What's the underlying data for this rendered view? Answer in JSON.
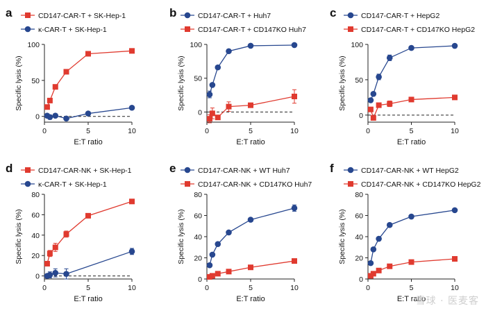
{
  "figure": {
    "watermark": "雪球 · 医麦客"
  },
  "panels": [
    {
      "letter": "a",
      "ylabel": "Specific lysis (%)",
      "xlabel": "E:T ratio",
      "ylim": [
        -8,
        100
      ],
      "yticks": [
        0,
        50,
        100
      ],
      "xlim": [
        0,
        10
      ],
      "xticks": [
        0,
        5,
        10
      ],
      "series": [
        {
          "name": "CD147-CAR-T + SK-Hep-1",
          "color": "#e03a2f",
          "marker": "square",
          "x": [
            0.3125,
            0.625,
            1.25,
            2.5,
            5,
            10
          ],
          "y": [
            13,
            22,
            41,
            62,
            87,
            91
          ],
          "err": [
            2,
            2,
            2,
            2,
            2,
            2
          ]
        },
        {
          "name": "κ-CAR-T + SK-Hep-1",
          "color": "#27478f",
          "marker": "circle",
          "x": [
            0.3125,
            0.625,
            1.25,
            2.5,
            5,
            10
          ],
          "y": [
            1,
            -1,
            1,
            -3,
            4,
            12
          ],
          "err": [
            1,
            3,
            1,
            1,
            1,
            1
          ]
        }
      ]
    },
    {
      "letter": "b",
      "ylabel": "Specific lysis (%)",
      "xlabel": "E:T ratio",
      "ylim": [
        -15,
        100
      ],
      "yticks": [
        0,
        50,
        100
      ],
      "xlim": [
        0,
        10
      ],
      "xticks": [
        0,
        5,
        10
      ],
      "series": [
        {
          "name": "CD147-CAR-T + Huh7",
          "color": "#27478f",
          "marker": "circle",
          "x": [
            0.3125,
            0.625,
            1.25,
            2.5,
            5,
            10
          ],
          "y": [
            26,
            40,
            66,
            90,
            98,
            99
          ],
          "err": [
            5,
            2,
            2,
            1,
            1,
            1
          ]
        },
        {
          "name": "CD147-CAR-T + CD147KO Huh7",
          "color": "#e03a2f",
          "marker": "square",
          "x": [
            0.3125,
            0.625,
            1.25,
            2.5,
            5,
            10
          ],
          "y": [
            -10,
            -2,
            -8,
            8,
            10,
            23
          ],
          "err": [
            6,
            8,
            2,
            7,
            2,
            10
          ]
        }
      ]
    },
    {
      "letter": "c",
      "ylabel": "Specific lysis (%)",
      "xlabel": "E:T ratio",
      "ylim": [
        -10,
        100
      ],
      "yticks": [
        0,
        50,
        100
      ],
      "xlim": [
        0,
        10
      ],
      "xticks": [
        0,
        5,
        10
      ],
      "series": [
        {
          "name": "CD147-CAR-T + HepG2",
          "color": "#27478f",
          "marker": "circle",
          "x": [
            0.3125,
            0.625,
            1.25,
            2.5,
            5,
            10
          ],
          "y": [
            21,
            30,
            54,
            81,
            95,
            98
          ],
          "err": [
            2,
            2,
            4,
            4,
            1,
            1
          ]
        },
        {
          "name": "CD147-CAR-T + CD147KO HepG2",
          "color": "#e03a2f",
          "marker": "square",
          "x": [
            0.3125,
            0.625,
            1.25,
            2.5,
            5,
            10
          ],
          "y": [
            8,
            -4,
            14,
            16,
            22,
            25
          ],
          "err": [
            3,
            2,
            3,
            4,
            2,
            3
          ]
        }
      ]
    },
    {
      "letter": "d",
      "ylabel": "Specific lysis (%)",
      "xlabel": "E:T ratio",
      "ylim": [
        -3,
        80
      ],
      "yticks": [
        0,
        20,
        40,
        60,
        80
      ],
      "xlim": [
        0,
        10
      ],
      "xticks": [
        0,
        5,
        10
      ],
      "series": [
        {
          "name": "CD147-CAR-NK + SK-Hep-1",
          "color": "#e03a2f",
          "marker": "square",
          "x": [
            0.3125,
            0.625,
            1.25,
            2.5,
            5,
            10
          ],
          "y": [
            12,
            22,
            28,
            41,
            59,
            73
          ],
          "err": [
            2,
            3,
            4,
            3,
            1,
            2
          ]
        },
        {
          "name": "κ-CAR-T + SK-Hep-1",
          "color": "#27478f",
          "marker": "circle",
          "x": [
            0.3125,
            0.625,
            1.25,
            2.5,
            5,
            10
          ],
          "y": [
            0,
            1,
            3,
            2,
            null,
            24
          ],
          "err": [
            1,
            3,
            4,
            5,
            null,
            3
          ]
        }
      ]
    },
    {
      "letter": "e",
      "ylabel": "Specific lysis (%)",
      "xlabel": "E:T ratio",
      "ylim": [
        0,
        80
      ],
      "yticks": [
        0,
        20,
        40,
        60,
        80
      ],
      "xlim": [
        0,
        10
      ],
      "xticks": [
        0,
        5,
        10
      ],
      "series": [
        {
          "name": "CD147-CAR-NK + WT Huh7",
          "color": "#27478f",
          "marker": "circle",
          "x": [
            0.3125,
            0.625,
            1.25,
            2.5,
            5,
            10
          ],
          "y": [
            13,
            23,
            33,
            44,
            56,
            67
          ],
          "err": [
            1,
            1,
            1,
            1,
            1,
            3
          ]
        },
        {
          "name": "CD147-CAR-NK + CD147KO Huh7",
          "color": "#e03a2f",
          "marker": "square",
          "x": [
            0.3125,
            0.625,
            1.25,
            2.5,
            5,
            10
          ],
          "y": [
            2,
            3,
            5,
            7,
            11,
            17
          ],
          "err": [
            1,
            1,
            1,
            1,
            1,
            1
          ]
        }
      ]
    },
    {
      "letter": "f",
      "ylabel": "Specific lysis (%)",
      "xlabel": "E:T ratio",
      "ylim": [
        0,
        80
      ],
      "yticks": [
        0,
        20,
        40,
        60,
        80
      ],
      "xlim": [
        0,
        10
      ],
      "xticks": [
        0,
        5,
        10
      ],
      "series": [
        {
          "name": "CD147-CAR-NK + WT HepG2",
          "color": "#27478f",
          "marker": "circle",
          "x": [
            0.3125,
            0.625,
            1.25,
            2.5,
            5,
            10
          ],
          "y": [
            15,
            28,
            38,
            51,
            59,
            65
          ],
          "err": [
            1,
            1,
            1,
            1,
            1,
            1
          ]
        },
        {
          "name": "CD147-CAR-NK + CD147KO HepG2",
          "color": "#e03a2f",
          "marker": "square",
          "x": [
            0.3125,
            0.625,
            1.25,
            2.5,
            5,
            10
          ],
          "y": [
            3,
            5,
            8,
            12,
            16,
            19
          ],
          "err": [
            1,
            1,
            1,
            1,
            1,
            1
          ]
        }
      ]
    }
  ],
  "chart_data": [
    {
      "type": "line",
      "title": "a",
      "xlabel": "E:T ratio",
      "ylabel": "Specific lysis (%)",
      "ylim": [
        -8,
        100
      ],
      "x": [
        0.3125,
        0.625,
        1.25,
        2.5,
        5,
        10
      ],
      "series": [
        {
          "name": "CD147-CAR-T + SK-Hep-1",
          "values": [
            13,
            22,
            41,
            62,
            87,
            91
          ]
        },
        {
          "name": "κ-CAR-T + SK-Hep-1",
          "values": [
            1,
            -1,
            1,
            -3,
            4,
            12
          ]
        }
      ]
    },
    {
      "type": "line",
      "title": "b",
      "xlabel": "E:T ratio",
      "ylabel": "Specific lysis (%)",
      "ylim": [
        -15,
        100
      ],
      "x": [
        0.3125,
        0.625,
        1.25,
        2.5,
        5,
        10
      ],
      "series": [
        {
          "name": "CD147-CAR-T + Huh7",
          "values": [
            26,
            40,
            66,
            90,
            98,
            99
          ]
        },
        {
          "name": "CD147-CAR-T + CD147KO Huh7",
          "values": [
            -10,
            -2,
            -8,
            8,
            10,
            23
          ]
        }
      ]
    },
    {
      "type": "line",
      "title": "c",
      "xlabel": "E:T ratio",
      "ylabel": "Specific lysis (%)",
      "ylim": [
        -10,
        100
      ],
      "x": [
        0.3125,
        0.625,
        1.25,
        2.5,
        5,
        10
      ],
      "series": [
        {
          "name": "CD147-CAR-T + HepG2",
          "values": [
            21,
            30,
            54,
            81,
            95,
            98
          ]
        },
        {
          "name": "CD147-CAR-T + CD147KO HepG2",
          "values": [
            8,
            -4,
            14,
            16,
            22,
            25
          ]
        }
      ]
    },
    {
      "type": "line",
      "title": "d",
      "xlabel": "E:T ratio",
      "ylabel": "Specific lysis (%)",
      "ylim": [
        -3,
        80
      ],
      "x": [
        0.3125,
        0.625,
        1.25,
        2.5,
        5,
        10
      ],
      "series": [
        {
          "name": "CD147-CAR-NK + SK-Hep-1",
          "values": [
            12,
            22,
            28,
            41,
            59,
            73
          ]
        },
        {
          "name": "κ-CAR-T + SK-Hep-1",
          "values": [
            0,
            1,
            3,
            2,
            null,
            24
          ]
        }
      ]
    },
    {
      "type": "line",
      "title": "e",
      "xlabel": "E:T ratio",
      "ylabel": "Specific lysis (%)",
      "ylim": [
        0,
        80
      ],
      "x": [
        0.3125,
        0.625,
        1.25,
        2.5,
        5,
        10
      ],
      "series": [
        {
          "name": "CD147-CAR-NK + WT Huh7",
          "values": [
            13,
            23,
            33,
            44,
            56,
            67
          ]
        },
        {
          "name": "CD147-CAR-NK + CD147KO Huh7",
          "values": [
            2,
            3,
            5,
            7,
            11,
            17
          ]
        }
      ]
    },
    {
      "type": "line",
      "title": "f",
      "xlabel": "E:T ratio",
      "ylabel": "Specific lysis (%)",
      "ylim": [
        0,
        80
      ],
      "x": [
        0.3125,
        0.625,
        1.25,
        2.5,
        5,
        10
      ],
      "series": [
        {
          "name": "CD147-CAR-NK + WT HepG2",
          "values": [
            15,
            28,
            38,
            51,
            59,
            65
          ]
        },
        {
          "name": "CD147-CAR-NK + CD147KO HepG2",
          "values": [
            3,
            5,
            8,
            12,
            16,
            19
          ]
        }
      ]
    }
  ]
}
